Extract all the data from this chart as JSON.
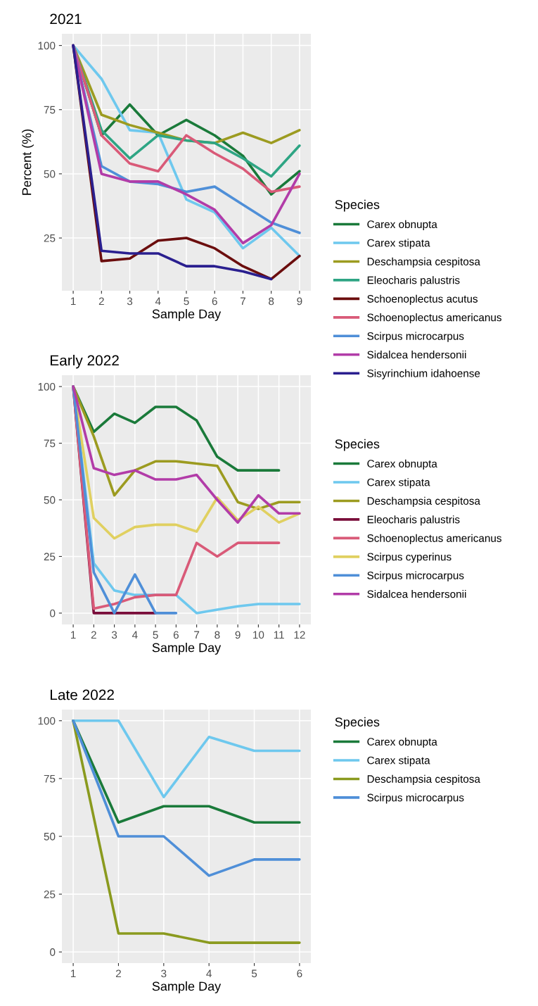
{
  "chart_data": [
    {
      "type": "line",
      "title": "2021",
      "xlabel": "Sample Day",
      "ylabel": "Percent (%)",
      "legend_title": "Species",
      "legend": "right",
      "grid": true,
      "xlim": [
        0.6,
        9.4
      ],
      "xticks": [
        1,
        2,
        3,
        4,
        5,
        6,
        7,
        8,
        9
      ],
      "ylim": [
        4.45,
        104.55
      ],
      "yticks": [
        25,
        50,
        75,
        100
      ],
      "x": [
        1,
        2,
        3,
        4,
        5,
        6,
        7,
        8,
        9
      ],
      "series": [
        {
          "name": "Carex obnupta",
          "color": "#1a7a3a",
          "values": [
            100,
            65,
            77,
            65,
            71,
            65,
            57,
            42,
            51
          ]
        },
        {
          "name": "Carex stipata",
          "color": "#6ec8ee",
          "values": [
            100,
            87,
            67,
            66,
            40,
            35,
            21,
            29,
            18
          ]
        },
        {
          "name": "Deschampsia cespitosa",
          "color": "#9c9b20",
          "values": [
            100,
            73,
            69,
            66,
            63,
            62,
            66,
            62,
            67
          ]
        },
        {
          "name": "Eleocharis palustris",
          "color": "#2ea584",
          "values": [
            100,
            67,
            56,
            65,
            63,
            62,
            56,
            49,
            61
          ]
        },
        {
          "name": "Schoenoplectus acutus",
          "color": "#6b0d0d",
          "values": [
            100,
            16,
            17,
            24,
            25,
            21,
            14,
            9,
            18
          ]
        },
        {
          "name": "Schoenoplectus americanus",
          "color": "#d95a78",
          "values": [
            100,
            65,
            54,
            51,
            65,
            58,
            52,
            43,
            45
          ]
        },
        {
          "name": "Scirpus microcarpus",
          "color": "#4f8fd8",
          "values": [
            100,
            53,
            47,
            46,
            43,
            45,
            38,
            31,
            27
          ]
        },
        {
          "name": "Sidalcea hendersonii",
          "color": "#b23ca8",
          "values": [
            100,
            50,
            47,
            47,
            42,
            36,
            23,
            30,
            50
          ]
        },
        {
          "name": "Sisyrinchium idahoense",
          "color": "#2a1f8f",
          "values": [
            100,
            20,
            19,
            19,
            14,
            14,
            12,
            9,
            null
          ]
        }
      ]
    },
    {
      "type": "line",
      "title": "Early 2022",
      "xlabel": "Sample Day",
      "legend_title": "Species",
      "legend": "right",
      "grid": true,
      "xlim": [
        0.45,
        12.55
      ],
      "xticks": [
        1,
        2,
        3,
        4,
        5,
        6,
        7,
        8,
        9,
        10,
        11,
        12
      ],
      "ylim": [
        -5,
        105
      ],
      "yticks": [
        0,
        25,
        50,
        75,
        100
      ],
      "x": [
        1,
        2,
        3,
        4,
        5,
        6,
        7,
        8,
        9,
        10,
        11,
        12
      ],
      "series": [
        {
          "name": "Carex obnupta",
          "color": "#1a7a3a",
          "values": [
            100,
            80,
            88,
            84,
            91,
            91,
            85,
            69,
            63,
            63,
            63,
            null
          ]
        },
        {
          "name": "Carex stipata",
          "color": "#6ec8ee",
          "values": [
            100,
            22,
            10,
            8,
            8,
            8,
            0,
            1.5,
            3,
            4,
            4,
            4
          ]
        },
        {
          "name": "Deschampsia cespitosa",
          "color": "#9c9b20",
          "values": [
            100,
            78,
            52,
            63,
            67,
            67,
            66,
            65,
            49,
            46,
            49,
            49
          ]
        },
        {
          "name": "Eleocharis palustris",
          "color": "#7a0d3a",
          "values": [
            100,
            0,
            0,
            0,
            0,
            null,
            null,
            null,
            null,
            null,
            null,
            null
          ]
        },
        {
          "name": "Schoenoplectus americanus",
          "color": "#d95a78",
          "values": [
            100,
            2,
            4,
            7,
            8,
            8,
            31,
            25,
            31,
            31,
            31,
            null
          ]
        },
        {
          "name": "Scirpus cyperinus",
          "color": "#e0d060",
          "values": [
            100,
            42,
            33,
            38,
            39,
            39,
            36,
            51,
            41,
            47,
            40,
            44
          ]
        },
        {
          "name": "Scirpus microcarpus",
          "color": "#4f8fd8",
          "values": [
            100,
            18,
            0,
            17,
            0,
            0,
            null,
            null,
            null,
            null,
            null,
            null
          ]
        },
        {
          "name": "Sidalcea hendersonii",
          "color": "#b23ca8",
          "values": [
            100,
            64,
            61,
            63,
            59,
            59,
            61,
            50,
            40,
            52,
            44,
            44
          ]
        }
      ]
    },
    {
      "type": "line",
      "title": "Late 2022",
      "xlabel": "Sample Day",
      "legend_title": "Species",
      "legend": "right",
      "grid": true,
      "xlim": [
        0.75,
        6.25
      ],
      "xticks": [
        1,
        2,
        3,
        4,
        5,
        6
      ],
      "ylim": [
        -4.8,
        104.8
      ],
      "yticks": [
        0,
        25,
        50,
        75,
        100
      ],
      "x": [
        1,
        2,
        3,
        4,
        5,
        6
      ],
      "series": [
        {
          "name": "Carex obnupta",
          "color": "#1a7a3a",
          "values": [
            100,
            56,
            63,
            63,
            56,
            56
          ]
        },
        {
          "name": "Carex stipata",
          "color": "#6ec8ee",
          "values": [
            100,
            100,
            67,
            93,
            87,
            87
          ]
        },
        {
          "name": "Deschampsia cespitosa",
          "color": "#8a9a1e",
          "values": [
            100,
            8,
            8,
            4,
            4,
            4
          ]
        },
        {
          "name": "Scirpus microcarpus",
          "color": "#4f8fd8",
          "values": [
            100,
            50,
            50,
            33,
            40,
            40
          ]
        }
      ]
    }
  ]
}
